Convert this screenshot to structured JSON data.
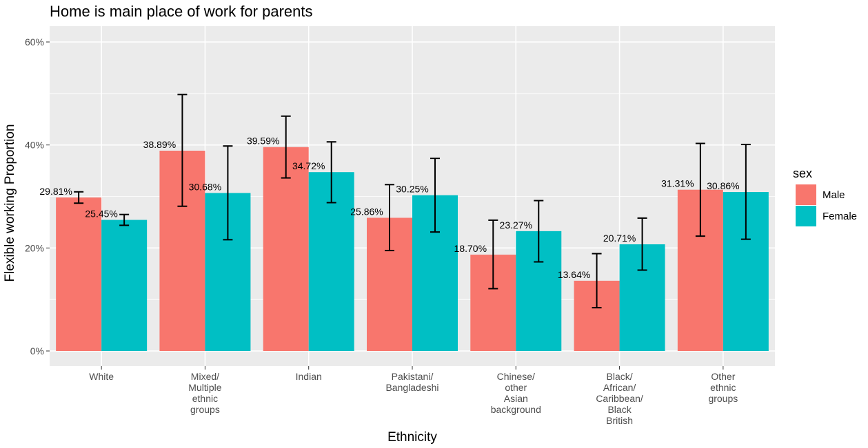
{
  "chart_data": {
    "type": "bar",
    "title": "Home is main place of work for parents",
    "xlabel": "Ethnicity",
    "ylabel": "Flexible working Proportion",
    "ylim": [
      0,
      0.6
    ],
    "yticks": [
      "0%",
      "20%",
      "40%",
      "60%"
    ],
    "ytick_values": [
      0,
      0.2,
      0.4,
      0.6
    ],
    "grid": true,
    "legend": {
      "title": "sex",
      "position": "right"
    },
    "categories": [
      [
        "White"
      ],
      [
        "Mixed/",
        "Multiple",
        "ethnic",
        "groups"
      ],
      [
        "Indian"
      ],
      [
        "Pakistani/",
        "Bangladeshi"
      ],
      [
        "Chinese/",
        "other",
        "Asian",
        "background"
      ],
      [
        "Black/",
        "African/",
        "Caribbean/",
        "Black",
        "British"
      ],
      [
        "Other",
        "ethnic",
        "groups"
      ]
    ],
    "series": [
      {
        "name": "Male",
        "color": "#F8766D",
        "values": [
          0.2981,
          0.3889,
          0.3959,
          0.2586,
          0.187,
          0.1364,
          0.3131
        ],
        "labels": [
          "29.81%",
          "38.89%",
          "39.59%",
          "25.86%",
          "18.70%",
          "13.64%",
          "31.31%"
        ],
        "err_low": [
          0.287,
          0.281,
          0.336,
          0.195,
          0.121,
          0.084,
          0.223
        ],
        "err_high": [
          0.309,
          0.498,
          0.456,
          0.323,
          0.254,
          0.189,
          0.403
        ]
      },
      {
        "name": "Female",
        "color": "#00BFC4",
        "values": [
          0.2545,
          0.3068,
          0.3472,
          0.3025,
          0.2327,
          0.2071,
          0.3086
        ],
        "labels": [
          "25.45%",
          "30.68%",
          "34.72%",
          "30.25%",
          "23.27%",
          "20.71%",
          "30.86%"
        ],
        "err_low": [
          0.244,
          0.216,
          0.288,
          0.231,
          0.173,
          0.157,
          0.217
        ],
        "err_high": [
          0.265,
          0.398,
          0.406,
          0.374,
          0.292,
          0.258,
          0.401
        ]
      }
    ]
  }
}
